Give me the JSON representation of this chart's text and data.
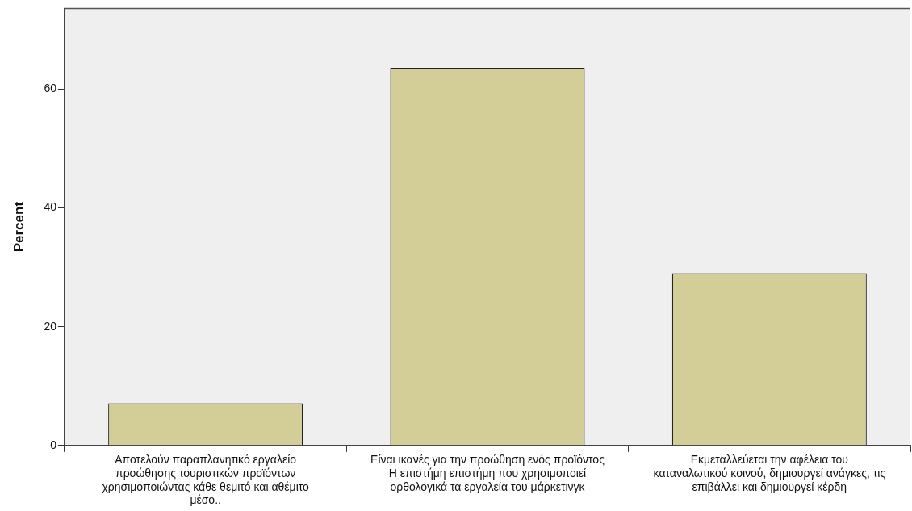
{
  "chart_data": {
    "type": "bar",
    "ylabel": "Percent",
    "categories": [
      "Αποτελούν παραπλανητικό εργαλείο προώθησης τουριστικών προϊόντων χρησιμοποιώντας κάθε θεμιτό και αθέμιτο μέσο..",
      "Είναι ικανές για την προώθηση ενός προϊόντος Η επιστήμη επιστήμη που χρησιμοποιεί ορθολογικά τα εργαλεία του μάρκετινγκ",
      "Εκμεταλλεύεται την αφέλεια του καταναλωτικού κοινού, δημιουργεί ανάγκες, τις επιβάλλει και δημιουργεί κέρδη"
    ],
    "values": [
      7.1,
      63.6,
      29.0
    ],
    "color": "#d3ce97",
    "ylim": [
      0,
      73.6
    ],
    "yticks": [
      0,
      20,
      40,
      60
    ],
    "grid": false,
    "legend": false
  }
}
